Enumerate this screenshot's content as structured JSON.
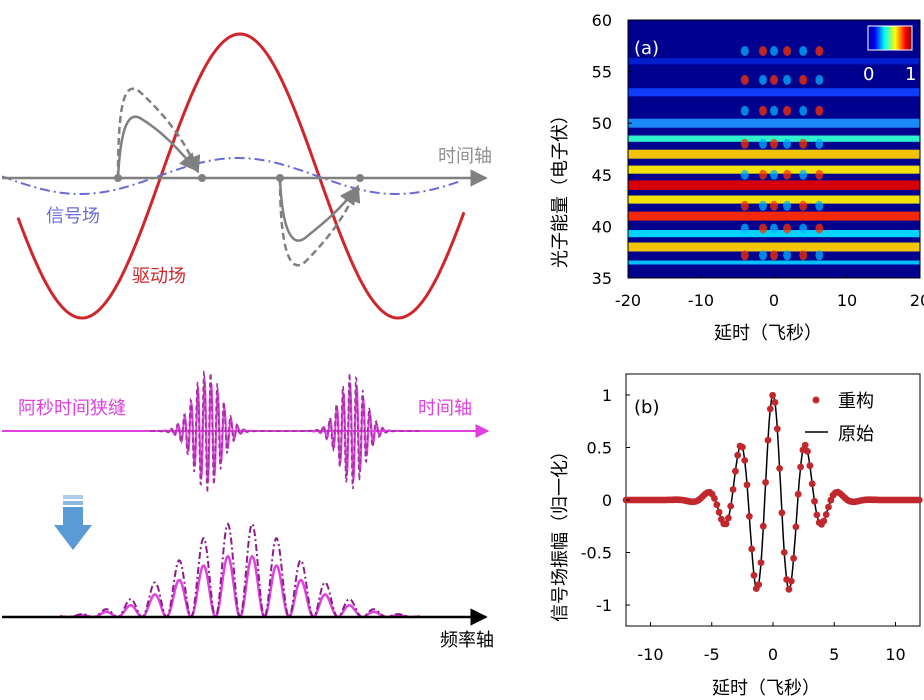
{
  "schematic": {
    "time_axis_label": "时间轴",
    "signal_field_label": "信号场",
    "driving_field_label": "驱动场",
    "attosecond_gate_label": "阿秒时间狭缝",
    "time_axis_label_2": "时间轴",
    "frequency_axis_label": "频率轴",
    "colors": {
      "driving": "#d0262b",
      "signal": "#6a6bd6",
      "gray": "#808080",
      "pulse": "#e040e0",
      "pulse_dark": "#8a1e86",
      "arrow_blue": "#5b9bd5"
    }
  },
  "chart_data": [
    {
      "type": "heatmap",
      "panel_label": "(a)",
      "xlabel": "延时（飞秒）",
      "ylabel": "光子能量（电子伏）",
      "xlim": [
        -20,
        20
      ],
      "ylim": [
        35,
        60
      ],
      "xticks": [
        "-20",
        "-10",
        "0",
        "10",
        "20"
      ],
      "yticks": [
        "35",
        "40",
        "45",
        "50",
        "55",
        "60"
      ],
      "colorbar": {
        "min_label": "0",
        "max_label": "1",
        "colormap": "jet"
      },
      "bright_bands_eV": [
        36.5,
        38.0,
        41.0,
        44.0,
        47.0,
        50.0,
        53.0
      ],
      "modulation_delay_range_fs": [
        -6,
        8
      ]
    },
    {
      "type": "line",
      "panel_label": "(b)",
      "xlabel": "延时（飞秒）",
      "ylabel": "信号场振幅（归一化）",
      "xlim": [
        -12,
        12
      ],
      "ylim": [
        -1.2,
        1.2
      ],
      "xticks": [
        "-10",
        "-5",
        "0",
        "5",
        "10"
      ],
      "yticks": [
        "1",
        "0.5",
        "0",
        "-0.5",
        "-1"
      ],
      "legend_position": "top-right",
      "series": [
        {
          "name": "重构",
          "style": "markers",
          "color": "#c0282d"
        },
        {
          "name": "原始",
          "style": "line",
          "color": "#000000"
        }
      ],
      "envelope_width_fs": 3.3,
      "period_fs": 2.7
    }
  ]
}
